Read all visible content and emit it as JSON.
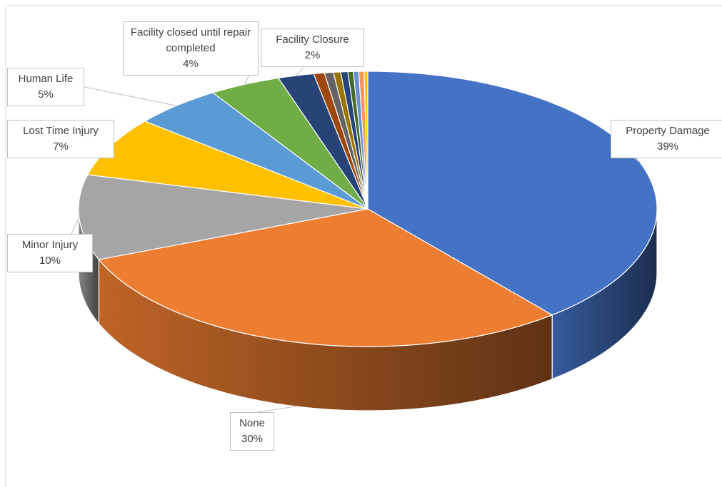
{
  "chart_data": {
    "type": "pie",
    "categories": [
      "Property Damage",
      "None",
      "Minor Injury",
      "Lost Time Injury",
      "Human Life",
      "Facility closed until repair completed",
      "Facility Closure",
      null,
      null,
      null,
      null,
      null,
      null,
      null,
      null
    ],
    "values": [
      39,
      30,
      10,
      7,
      5,
      4,
      2,
      0.6,
      0.5,
      0.4,
      0.4,
      0.3,
      0.3,
      0.3,
      0.2
    ],
    "value_labels": [
      "39%",
      "30%",
      "10%",
      "7%",
      "5%",
      "4%",
      "2%",
      null,
      null,
      null,
      null,
      null,
      null,
      null,
      null
    ],
    "colors": [
      "#4472c4",
      "#ed7d31",
      "#a5a5a5",
      "#ffc000",
      "#5b9bd5",
      "#70ad47",
      "#264478",
      "#9e480e",
      "#636363",
      "#997300",
      "#264478",
      "#43682b",
      "#698ed0",
      "#f1975a",
      "#ffc000"
    ]
  }
}
